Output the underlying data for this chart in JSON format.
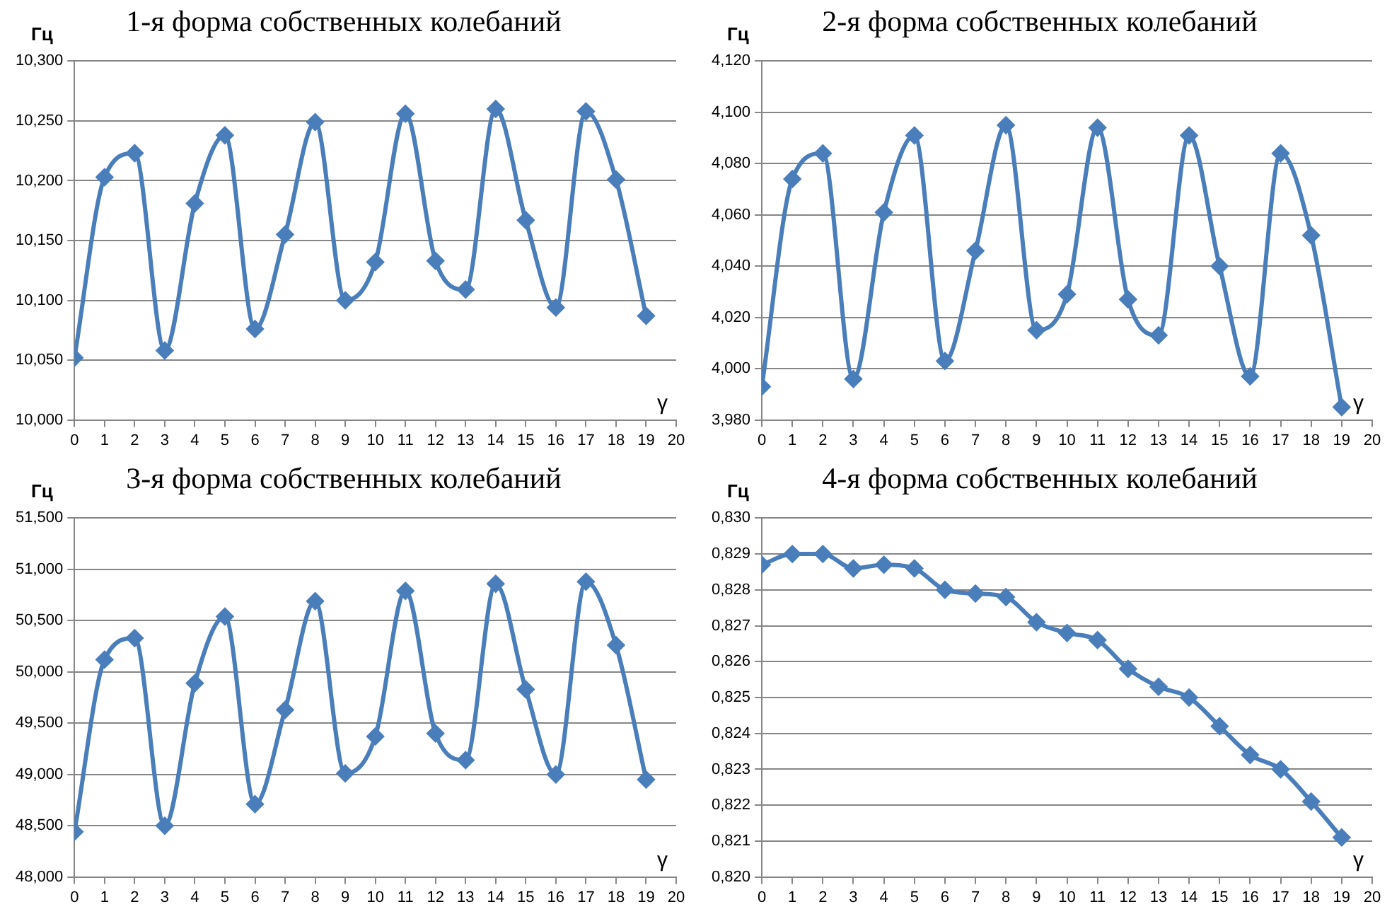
{
  "chart_data": [
    {
      "type": "line",
      "title": "1-я форма собственных колебаний",
      "ylabel": "Гц",
      "xlabel": "γ",
      "marker": "diamond",
      "grid": "y",
      "legend": false,
      "x": [
        0,
        1,
        2,
        3,
        4,
        5,
        6,
        7,
        8,
        9,
        10,
        11,
        12,
        13,
        14,
        15,
        16,
        17,
        18,
        19
      ],
      "series": [
        {
          "color": "#4a7ebb",
          "values": [
            10.052,
            10.203,
            10.223,
            10.058,
            10.181,
            10.238,
            10.076,
            10.155,
            10.249,
            10.1,
            10.132,
            10.256,
            10.133,
            10.109,
            10.26,
            10.167,
            10.094,
            10.258,
            10.201,
            10.087
          ]
        }
      ],
      "xlim": [
        0,
        20
      ],
      "xticks": [
        0,
        1,
        2,
        3,
        4,
        5,
        6,
        7,
        8,
        9,
        10,
        11,
        12,
        13,
        14,
        15,
        16,
        17,
        18,
        19,
        20
      ],
      "ylim": [
        10.0,
        10.3
      ],
      "yticks": [
        {
          "value": 10.0,
          "label": "10,000"
        },
        {
          "value": 10.05,
          "label": "10,050"
        },
        {
          "value": 10.1,
          "label": "10,100"
        },
        {
          "value": 10.15,
          "label": "10,150"
        },
        {
          "value": 10.2,
          "label": "10,200"
        },
        {
          "value": 10.25,
          "label": "10,250"
        },
        {
          "value": 10.3,
          "label": "10,300"
        }
      ]
    },
    {
      "type": "line",
      "title": "2-я форма собственных колебаний",
      "ylabel": "Гц",
      "xlabel": "γ",
      "marker": "diamond",
      "grid": "y",
      "legend": false,
      "x": [
        0,
        1,
        2,
        3,
        4,
        5,
        6,
        7,
        8,
        9,
        10,
        11,
        12,
        13,
        14,
        15,
        16,
        17,
        18,
        19
      ],
      "series": [
        {
          "color": "#4a7ebb",
          "values": [
            3.993,
            4.074,
            4.084,
            3.996,
            4.061,
            4.091,
            4.003,
            4.046,
            4.095,
            4.015,
            4.029,
            4.094,
            4.027,
            4.013,
            4.091,
            4.04,
            3.997,
            4.084,
            4.052,
            3.985
          ]
        }
      ],
      "xlim": [
        0,
        20
      ],
      "xticks": [
        0,
        1,
        2,
        3,
        4,
        5,
        6,
        7,
        8,
        9,
        10,
        11,
        12,
        13,
        14,
        15,
        16,
        17,
        18,
        19,
        20
      ],
      "ylim": [
        3.98,
        4.12
      ],
      "yticks": [
        {
          "value": 3.98,
          "label": "3,980"
        },
        {
          "value": 4.0,
          "label": "4,000"
        },
        {
          "value": 4.02,
          "label": "4,020"
        },
        {
          "value": 4.04,
          "label": "4,040"
        },
        {
          "value": 4.06,
          "label": "4,060"
        },
        {
          "value": 4.08,
          "label": "4,080"
        },
        {
          "value": 4.1,
          "label": "4,100"
        },
        {
          "value": 4.12,
          "label": "4,120"
        }
      ]
    },
    {
      "type": "line",
      "title": "3-я форма собственных колебаний",
      "ylabel": "Гц",
      "xlabel": "γ",
      "marker": "diamond",
      "grid": "y",
      "legend": false,
      "x": [
        0,
        1,
        2,
        3,
        4,
        5,
        6,
        7,
        8,
        9,
        10,
        11,
        12,
        13,
        14,
        15,
        16,
        17,
        18,
        19
      ],
      "series": [
        {
          "color": "#4a7ebb",
          "values": [
            48.44,
            50.12,
            50.33,
            48.5,
            49.89,
            50.54,
            48.71,
            49.63,
            50.69,
            49.01,
            49.37,
            50.79,
            49.4,
            49.14,
            50.86,
            49.83,
            49.0,
            50.88,
            50.26,
            48.95
          ]
        }
      ],
      "xlim": [
        0,
        20
      ],
      "xticks": [
        0,
        1,
        2,
        3,
        4,
        5,
        6,
        7,
        8,
        9,
        10,
        11,
        12,
        13,
        14,
        15,
        16,
        17,
        18,
        19,
        20
      ],
      "ylim": [
        48.0,
        51.5
      ],
      "yticks": [
        {
          "value": 48.0,
          "label": "48,000"
        },
        {
          "value": 48.5,
          "label": "48,500"
        },
        {
          "value": 49.0,
          "label": "49,000"
        },
        {
          "value": 49.5,
          "label": "49,500"
        },
        {
          "value": 50.0,
          "label": "50,000"
        },
        {
          "value": 50.5,
          "label": "50,500"
        },
        {
          "value": 51.0,
          "label": "51,000"
        },
        {
          "value": 51.5,
          "label": "51,500"
        }
      ]
    },
    {
      "type": "line",
      "title": "4-я форма собственных колебаний",
      "ylabel": "Гц",
      "xlabel": "γ",
      "marker": "diamond",
      "grid": "y",
      "legend": false,
      "x": [
        0,
        1,
        2,
        3,
        4,
        5,
        6,
        7,
        8,
        9,
        10,
        11,
        12,
        13,
        14,
        15,
        16,
        17,
        18,
        19
      ],
      "series": [
        {
          "color": "#4a7ebb",
          "values": [
            0.8287,
            0.829,
            0.829,
            0.8286,
            0.8287,
            0.8286,
            0.828,
            0.8279,
            0.8278,
            0.8271,
            0.8268,
            0.8266,
            0.8258,
            0.8253,
            0.825,
            0.8242,
            0.8234,
            0.823,
            0.8221,
            0.8211
          ]
        }
      ],
      "xlim": [
        0,
        20
      ],
      "xticks": [
        0,
        1,
        2,
        3,
        4,
        5,
        6,
        7,
        8,
        9,
        10,
        11,
        12,
        13,
        14,
        15,
        16,
        17,
        18,
        19,
        20
      ],
      "ylim": [
        0.82,
        0.83
      ],
      "yticks": [
        {
          "value": 0.82,
          "label": "0,820"
        },
        {
          "value": 0.821,
          "label": "0,821"
        },
        {
          "value": 0.822,
          "label": "0,822"
        },
        {
          "value": 0.823,
          "label": "0,823"
        },
        {
          "value": 0.824,
          "label": "0,824"
        },
        {
          "value": 0.825,
          "label": "0,825"
        },
        {
          "value": 0.826,
          "label": "0,826"
        },
        {
          "value": 0.827,
          "label": "0,827"
        },
        {
          "value": 0.828,
          "label": "0,828"
        },
        {
          "value": 0.829,
          "label": "0,829"
        },
        {
          "value": 0.83,
          "label": "0,830"
        }
      ]
    }
  ]
}
